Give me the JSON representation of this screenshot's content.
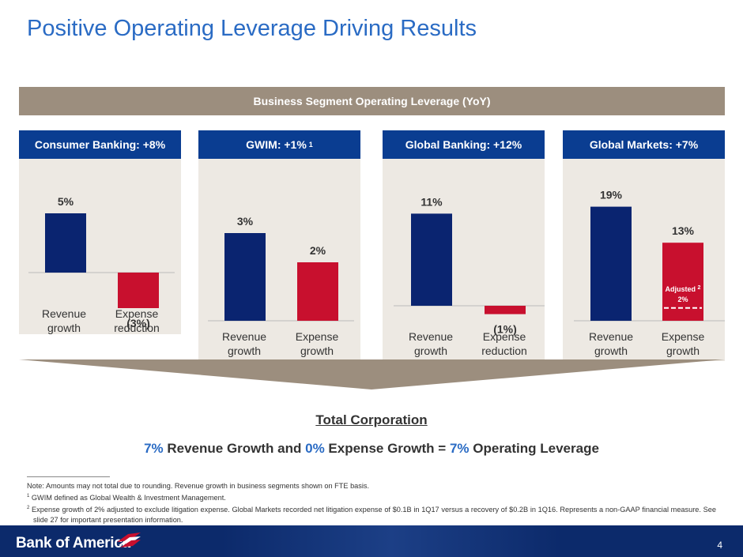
{
  "title": "Positive Operating Leverage Driving Results",
  "banner": "Business Segment Operating Leverage (YoY)",
  "panels": [
    {
      "header": "Consumer Banking: +8%",
      "sup": ""
    },
    {
      "header": "GWIM: +1%",
      "sup": "1"
    },
    {
      "header": "Global Banking: +12%",
      "sup": ""
    },
    {
      "header": "Global Markets: +7%",
      "sup": ""
    }
  ],
  "chart_data": [
    {
      "type": "bar",
      "title": "Consumer Banking: +8%",
      "categories": [
        "Revenue growth",
        "Expense reduction"
      ],
      "values": [
        5,
        -3
      ],
      "labels": [
        "5%",
        "(3%)"
      ],
      "colors": [
        "#0a2470",
        "#c8102e"
      ]
    },
    {
      "type": "bar",
      "title": "GWIM: +1%",
      "categories": [
        "Revenue growth",
        "Expense growth"
      ],
      "values": [
        3,
        2
      ],
      "labels": [
        "3%",
        "2%"
      ],
      "colors": [
        "#0a2470",
        "#c8102e"
      ]
    },
    {
      "type": "bar",
      "title": "Global Banking: +12%",
      "categories": [
        "Revenue growth",
        "Expense reduction"
      ],
      "values": [
        11,
        -1
      ],
      "labels": [
        "11%",
        "(1%)"
      ],
      "colors": [
        "#0a2470",
        "#c8102e"
      ]
    },
    {
      "type": "bar",
      "title": "Global Markets: +7%",
      "categories": [
        "Revenue growth",
        "Expense growth"
      ],
      "values": [
        19,
        13
      ],
      "labels": [
        "19%",
        "13%"
      ],
      "colors": [
        "#0a2470",
        "#c8102e"
      ],
      "annotation": {
        "label": "Adjusted",
        "sup": "2",
        "value": 2,
        "value_label": "2%"
      }
    }
  ],
  "total": {
    "title": "Total Corporation",
    "rev_value": "7%",
    "rev_text": " Revenue Growth and ",
    "exp_value": "0%",
    "exp_text": " Expense Growth = ",
    "lev_value": "7%",
    "lev_text": " Operating Leverage"
  },
  "notes": {
    "note": "Note: Amounts may not total due to rounding. Revenue growth in business segments shown on FTE basis.",
    "fn1_mark": "1",
    "fn1": " GWIM defined as Global Wealth & Investment Management.",
    "fn2_mark": "2",
    "fn2": " Expense growth of 2% adjusted to exclude litigation expense. Global Markets recorded net litigation expense of $0.1B in 1Q17 versus a recovery of $0.2B in 1Q16. Represents a non-GAAP financial measure. See slide 27 for important presentation information."
  },
  "footer": {
    "logo": "Bank of America",
    "page": "4"
  }
}
